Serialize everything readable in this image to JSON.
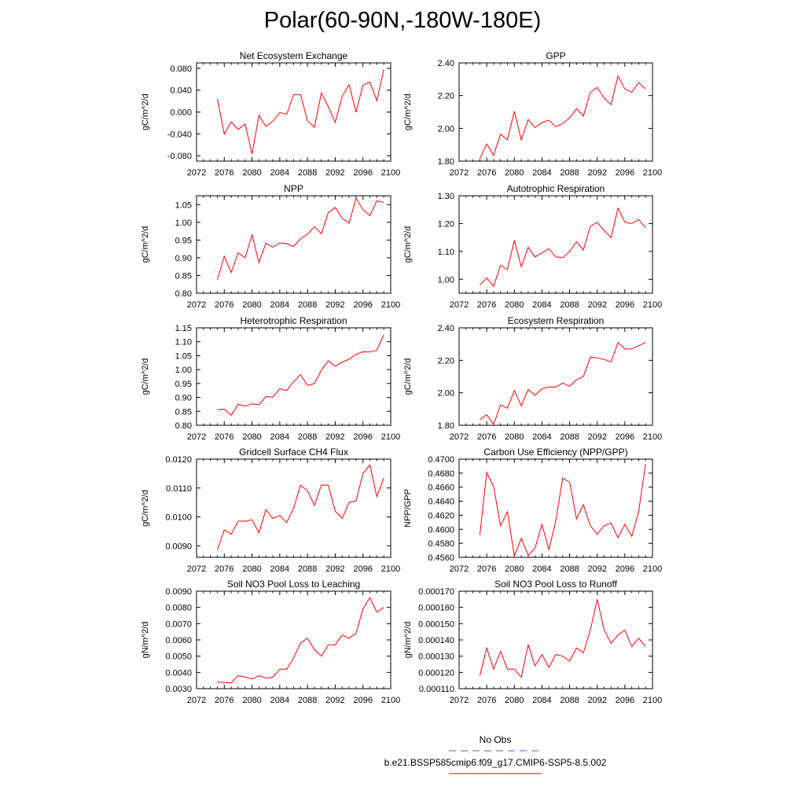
{
  "figure": {
    "title": "Polar(60-90N,-180W-180E)"
  },
  "legend": {
    "obs_label": "No Obs",
    "model_label": "b.e21.BSSP585cmip6.f09_g17.CMIP6-SSP5-8.5.002",
    "obs_color": "#5b5bd6",
    "model_color": "#ff0000"
  },
  "colors": {
    "line": "#ff0000",
    "axis": "#000000"
  },
  "chart_data": [
    {
      "type": "line",
      "title": "Net Ecosystem Exchange",
      "ylabel": "gC/m^2/d",
      "xlim": [
        2072,
        2100
      ],
      "xticks": [
        2072,
        2076,
        2080,
        2084,
        2088,
        2092,
        2096,
        2100
      ],
      "ylim": [
        -0.09,
        0.09
      ],
      "yticks": [
        "-0.080",
        "-0.040",
        "0.000",
        "0.040",
        "0.080"
      ],
      "x": [
        2075,
        2076,
        2077,
        2078,
        2079,
        2080,
        2081,
        2082,
        2083,
        2084,
        2085,
        2086,
        2087,
        2088,
        2089,
        2090,
        2091,
        2092,
        2093,
        2094,
        2095,
        2096,
        2097,
        2098,
        2099
      ],
      "values": [
        0.024,
        -0.04,
        -0.018,
        -0.032,
        -0.022,
        -0.077,
        -0.006,
        -0.026,
        -0.017,
        -0.001,
        -0.004,
        0.032,
        0.032,
        -0.016,
        -0.028,
        0.035,
        0.01,
        -0.019,
        0.029,
        0.05,
        0.0,
        0.049,
        0.055,
        0.021,
        0.078
      ]
    },
    {
      "type": "line",
      "title": "GPP",
      "ylabel": "gC/m^2/d",
      "xlim": [
        2072,
        2100
      ],
      "xticks": [
        2072,
        2076,
        2080,
        2084,
        2088,
        2092,
        2096,
        2100
      ],
      "ylim": [
        1.8,
        2.4
      ],
      "yticks": [
        "1.80",
        "2.00",
        "2.20",
        "2.40"
      ],
      "x": [
        2075,
        2076,
        2077,
        2078,
        2079,
        2080,
        2081,
        2082,
        2083,
        2084,
        2085,
        2086,
        2087,
        2088,
        2089,
        2090,
        2091,
        2092,
        2093,
        2094,
        2095,
        2096,
        2097,
        2098,
        2099
      ],
      "values": [
        1.815,
        1.905,
        1.835,
        1.965,
        1.93,
        2.105,
        1.93,
        2.055,
        2.005,
        2.035,
        2.05,
        2.01,
        2.03,
        2.065,
        2.12,
        2.075,
        2.22,
        2.25,
        2.185,
        2.145,
        2.32,
        2.24,
        2.22,
        2.28,
        2.24
      ]
    },
    {
      "type": "line",
      "title": "NPP",
      "ylabel": "gC/m^2/d",
      "xlim": [
        2072,
        2100
      ],
      "xticks": [
        2072,
        2076,
        2080,
        2084,
        2088,
        2092,
        2096,
        2100
      ],
      "ylim": [
        0.8,
        1.075
      ],
      "yticks": [
        "0.80",
        "0.85",
        "0.90",
        "0.95",
        "1.00",
        "1.05"
      ],
      "x": [
        2075,
        2076,
        2077,
        2078,
        2079,
        2080,
        2081,
        2082,
        2083,
        2084,
        2085,
        2086,
        2087,
        2088,
        2089,
        2090,
        2091,
        2092,
        2093,
        2094,
        2095,
        2096,
        2097,
        2098,
        2099
      ],
      "values": [
        0.838,
        0.904,
        0.858,
        0.914,
        0.9,
        0.965,
        0.886,
        0.941,
        0.93,
        0.942,
        0.94,
        0.932,
        0.954,
        0.966,
        0.988,
        0.968,
        1.027,
        1.042,
        1.011,
        0.998,
        1.068,
        1.036,
        1.019,
        1.061,
        1.056
      ]
    },
    {
      "type": "line",
      "title": "Autotrophic Respiration",
      "ylabel": "gC/m^2/d",
      "xlim": [
        2072,
        2100
      ],
      "xticks": [
        2072,
        2076,
        2080,
        2084,
        2088,
        2092,
        2096,
        2100
      ],
      "ylim": [
        0.95,
        1.3
      ],
      "yticks": [
        "1.00",
        "1.10",
        "1.20",
        "1.30"
      ],
      "x": [
        2075,
        2076,
        2077,
        2078,
        2079,
        2080,
        2081,
        2082,
        2083,
        2084,
        2085,
        2086,
        2087,
        2088,
        2089,
        2090,
        2091,
        2092,
        2093,
        2094,
        2095,
        2096,
        2097,
        2098,
        2099
      ],
      "values": [
        0.98,
        1.005,
        0.975,
        1.05,
        1.035,
        1.14,
        1.045,
        1.115,
        1.08,
        1.095,
        1.11,
        1.08,
        1.078,
        1.1,
        1.135,
        1.105,
        1.19,
        1.205,
        1.175,
        1.15,
        1.255,
        1.205,
        1.2,
        1.215,
        1.185
      ]
    },
    {
      "type": "line",
      "title": "Heterotrophic Respiration",
      "ylabel": "gC/m^2/d",
      "xlim": [
        2072,
        2100
      ],
      "xticks": [
        2072,
        2076,
        2080,
        2084,
        2088,
        2092,
        2096,
        2100
      ],
      "ylim": [
        0.8,
        1.15
      ],
      "yticks": [
        "0.80",
        "0.85",
        "0.90",
        "0.95",
        "1.00",
        "1.05",
        "1.10",
        "1.15"
      ],
      "x": [
        2075,
        2076,
        2077,
        2078,
        2079,
        2080,
        2081,
        2082,
        2083,
        2084,
        2085,
        2086,
        2087,
        2088,
        2089,
        2090,
        2091,
        2092,
        2093,
        2094,
        2095,
        2096,
        2097,
        2098,
        2099
      ],
      "values": [
        0.856,
        0.858,
        0.836,
        0.876,
        0.869,
        0.877,
        0.874,
        0.903,
        0.901,
        0.931,
        0.925,
        0.957,
        0.982,
        0.943,
        0.95,
        0.998,
        1.032,
        1.012,
        1.027,
        1.037,
        1.055,
        1.064,
        1.063,
        1.07,
        1.125
      ]
    },
    {
      "type": "line",
      "title": "Ecosystem Respiration",
      "ylabel": "gC/m^2/d",
      "xlim": [
        2072,
        2100
      ],
      "xticks": [
        2072,
        2076,
        2080,
        2084,
        2088,
        2092,
        2096,
        2100
      ],
      "ylim": [
        1.8,
        2.4
      ],
      "yticks": [
        "1.80",
        "2.00",
        "2.20",
        "2.40"
      ],
      "x": [
        2075,
        2076,
        2077,
        2078,
        2079,
        2080,
        2081,
        2082,
        2083,
        2084,
        2085,
        2086,
        2087,
        2088,
        2089,
        2090,
        2091,
        2092,
        2093,
        2094,
        2095,
        2096,
        2097,
        2098,
        2099
      ],
      "values": [
        1.835,
        1.865,
        1.805,
        1.925,
        1.905,
        2.015,
        1.92,
        2.02,
        1.985,
        2.025,
        2.035,
        2.035,
        2.06,
        2.04,
        2.08,
        2.1,
        2.22,
        2.215,
        2.205,
        2.19,
        2.31,
        2.27,
        2.27,
        2.29,
        2.31
      ]
    },
    {
      "type": "line",
      "title": "Gridcell Surface CH4 Flux",
      "ylabel": "gC/m^2/d",
      "xlim": [
        2072,
        2100
      ],
      "xticks": [
        2072,
        2076,
        2080,
        2084,
        2088,
        2092,
        2096,
        2100
      ],
      "ylim": [
        0.0086,
        0.012
      ],
      "yticks": [
        "0.0090",
        "0.0100",
        "0.0110",
        "0.0120"
      ],
      "x": [
        2075,
        2076,
        2077,
        2078,
        2079,
        2080,
        2081,
        2082,
        2083,
        2084,
        2085,
        2086,
        2087,
        2088,
        2089,
        2090,
        2091,
        2092,
        2093,
        2094,
        2095,
        2096,
        2097,
        2098,
        2099
      ],
      "values": [
        0.00885,
        0.00955,
        0.0094,
        0.00985,
        0.00985,
        0.0099,
        0.00945,
        0.01025,
        0.00995,
        0.01005,
        0.0098,
        0.0103,
        0.0111,
        0.0109,
        0.0104,
        0.0111,
        0.0111,
        0.0102,
        0.00995,
        0.0105,
        0.01055,
        0.0115,
        0.0118,
        0.0107,
        0.01135
      ]
    },
    {
      "type": "line",
      "title": "Carbon Use Efficiency (NPP/GPP)",
      "ylabel": "NPP/GPP",
      "xlim": [
        2072,
        2100
      ],
      "xticks": [
        2072,
        2076,
        2080,
        2084,
        2088,
        2092,
        2096,
        2100
      ],
      "ylim": [
        0.456,
        0.47
      ],
      "yticks": [
        "0.4560",
        "0.4580",
        "0.4600",
        "0.4620",
        "0.4640",
        "0.4660",
        "0.4680",
        "0.4700"
      ],
      "x": [
        2075,
        2076,
        2077,
        2078,
        2079,
        2080,
        2081,
        2082,
        2083,
        2084,
        2085,
        2086,
        2087,
        2088,
        2089,
        2090,
        2091,
        2092,
        2093,
        2094,
        2095,
        2096,
        2097,
        2098,
        2099
      ],
      "values": [
        0.4592,
        0.4681,
        0.4661,
        0.4605,
        0.4625,
        0.4562,
        0.4587,
        0.4563,
        0.4573,
        0.4607,
        0.4571,
        0.4612,
        0.4673,
        0.4667,
        0.4615,
        0.4635,
        0.4605,
        0.4593,
        0.4605,
        0.4609,
        0.4588,
        0.4607,
        0.459,
        0.4625,
        0.4693
      ]
    },
    {
      "type": "line",
      "title": "Soil NO3 Pool Loss to Leaching",
      "ylabel": "gN/m^2/d",
      "xlim": [
        2072,
        2100
      ],
      "xticks": [
        2072,
        2076,
        2080,
        2084,
        2088,
        2092,
        2096,
        2100
      ],
      "ylim": [
        0.003,
        0.009
      ],
      "yticks": [
        "0.0030",
        "0.0040",
        "0.0050",
        "0.0060",
        "0.0070",
        "0.0080",
        "0.0090"
      ],
      "x": [
        2075,
        2076,
        2077,
        2078,
        2079,
        2080,
        2081,
        2082,
        2083,
        2084,
        2085,
        2086,
        2087,
        2088,
        2089,
        2090,
        2091,
        2092,
        2093,
        2094,
        2095,
        2096,
        2097,
        2098,
        2099
      ],
      "values": [
        0.0034,
        0.00338,
        0.00335,
        0.0038,
        0.00372,
        0.0036,
        0.0038,
        0.00365,
        0.0037,
        0.0042,
        0.0042,
        0.0049,
        0.0058,
        0.0061,
        0.0054,
        0.005,
        0.0057,
        0.0057,
        0.0063,
        0.0061,
        0.0064,
        0.0079,
        0.0086,
        0.0077,
        0.008
      ]
    },
    {
      "type": "line",
      "title": "Soil NO3 Pool Loss to Runoff",
      "ylabel": "gN/m^2/d",
      "xlim": [
        2072,
        2100
      ],
      "xticks": [
        2072,
        2076,
        2080,
        2084,
        2088,
        2092,
        2096,
        2100
      ],
      "ylim": [
        0.00011,
        0.00017
      ],
      "yticks": [
        "0.000110",
        "0.000120",
        "0.000130",
        "0.000140",
        "0.000150",
        "0.000160",
        "0.000170"
      ],
      "x": [
        2075,
        2076,
        2077,
        2078,
        2079,
        2080,
        2081,
        2082,
        2083,
        2084,
        2085,
        2086,
        2087,
        2088,
        2089,
        2090,
        2091,
        2092,
        2093,
        2094,
        2095,
        2096,
        2097,
        2098,
        2099
      ],
      "values": [
        0.000118,
        0.000135,
        0.000122,
        0.000133,
        0.000122,
        0.000122,
        0.000117,
        0.000137,
        0.000124,
        0.000131,
        0.000123,
        0.000131,
        0.00013,
        0.000127,
        0.000135,
        0.000132,
        0.000146,
        0.000165,
        0.000146,
        0.000138,
        0.000143,
        0.000146,
        0.000136,
        0.000141,
        0.000136
      ]
    }
  ]
}
